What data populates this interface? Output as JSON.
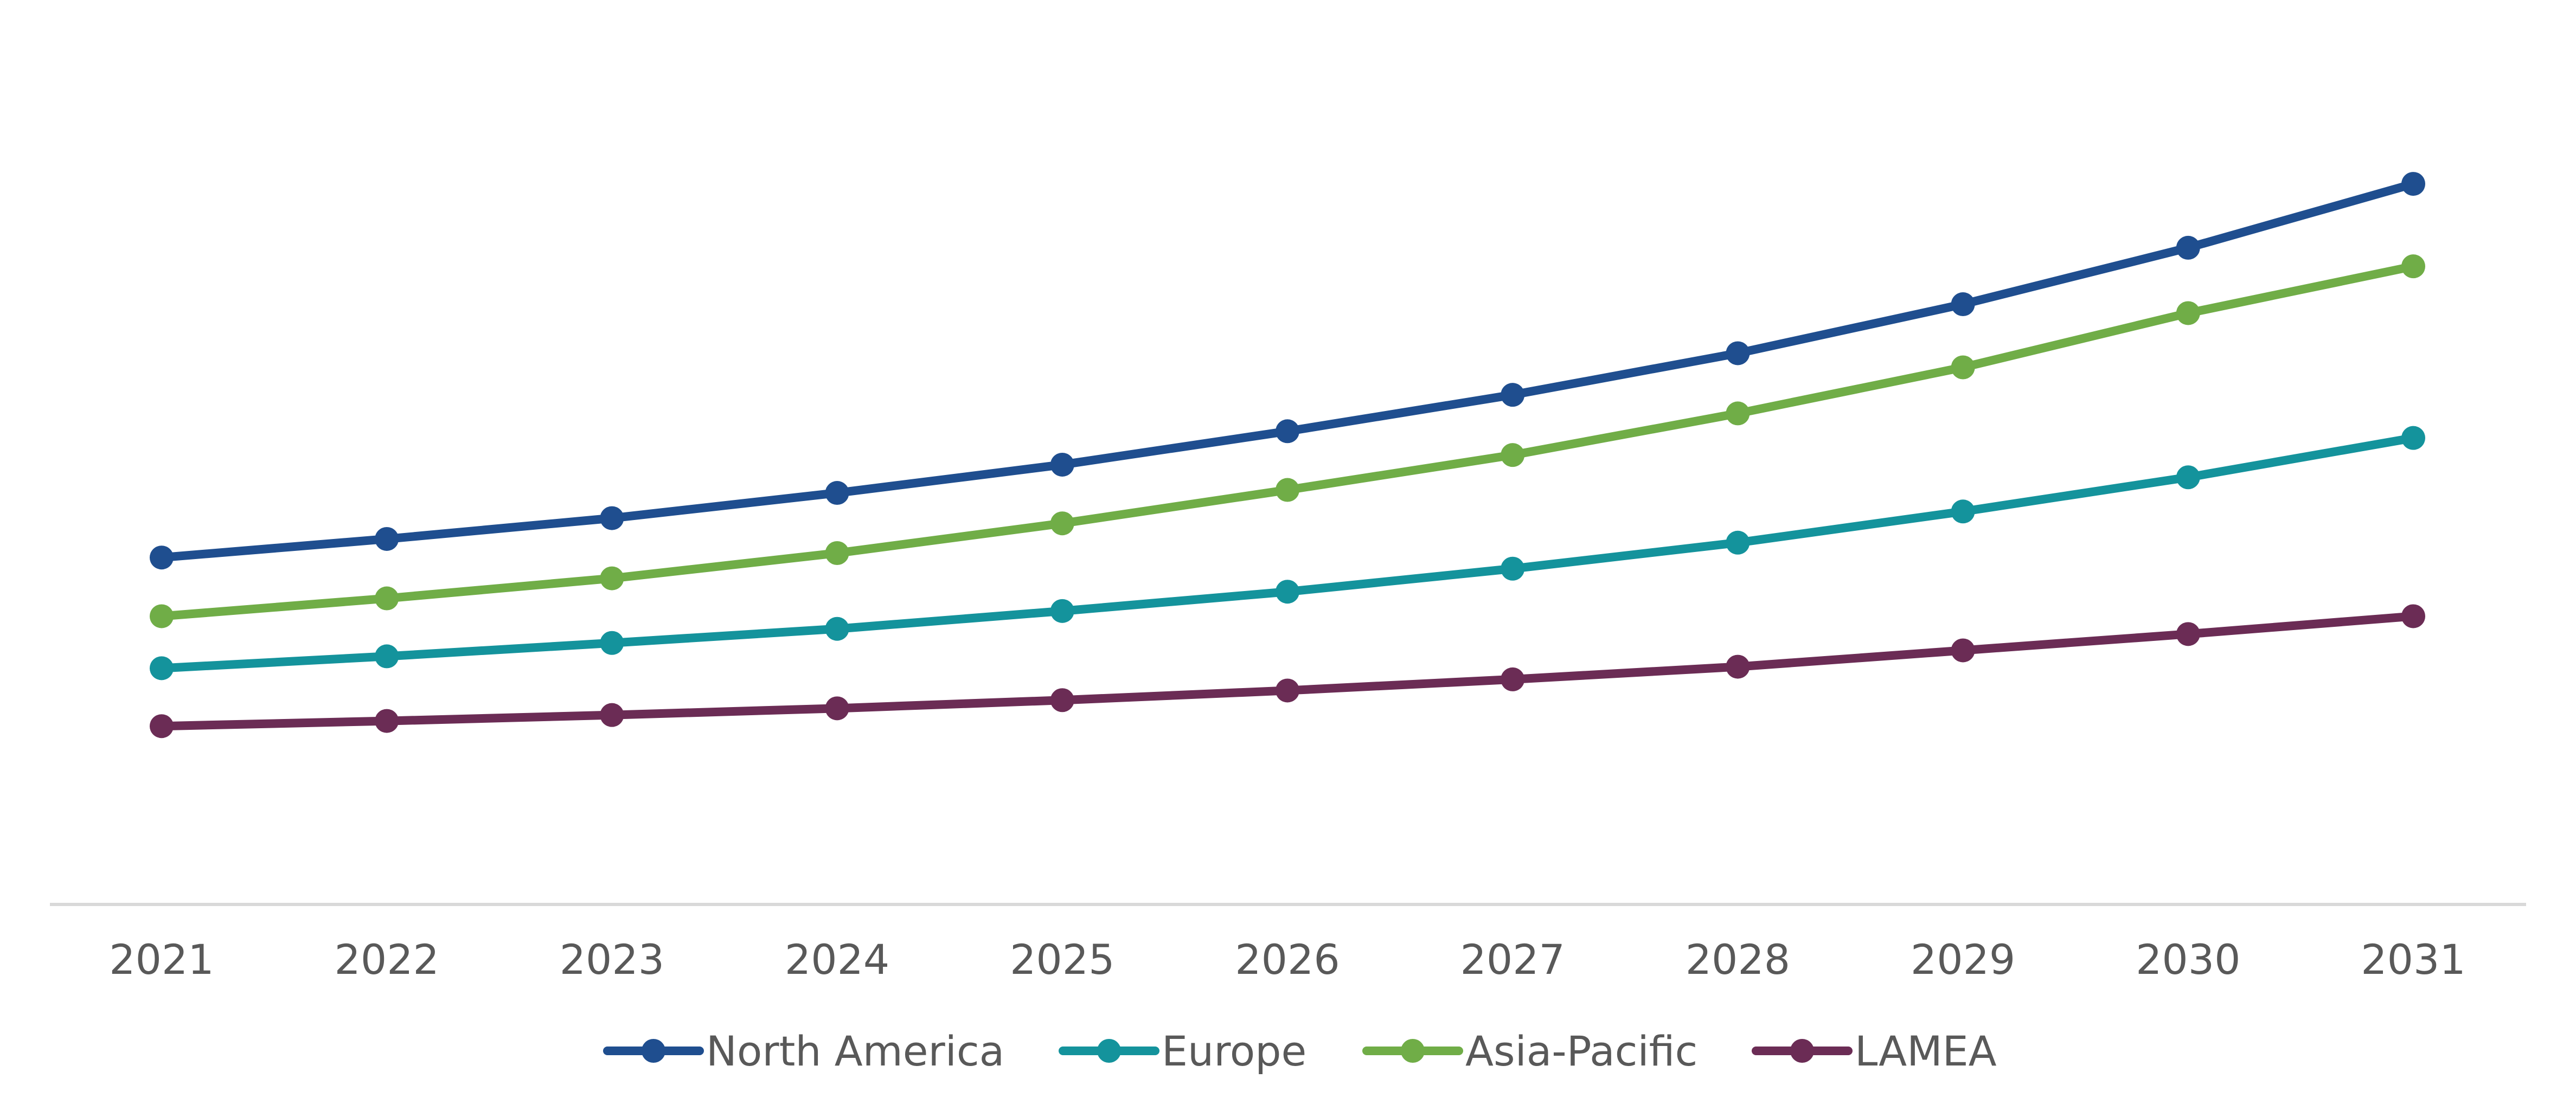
{
  "chart_data": {
    "type": "line",
    "title": "",
    "xlabel": "",
    "ylabel": "",
    "categories": [
      "2021",
      "2022",
      "2023",
      "2024",
      "2025",
      "2026",
      "2027",
      "2028",
      "2029",
      "2030",
      "2031"
    ],
    "ylim": [
      0,
      100
    ],
    "grid": false,
    "legend_position": "bottom-center",
    "series": [
      {
        "name": "North America",
        "color": "#1F4E8F",
        "values": [
          46.7,
          49.2,
          52.0,
          55.4,
          59.2,
          63.7,
          68.6,
          74.2,
          80.8,
          88.4,
          97.0
        ]
      },
      {
        "name": "Europe",
        "color": "#14939C",
        "values": [
          31.8,
          33.4,
          35.2,
          37.1,
          39.5,
          42.1,
          45.2,
          48.7,
          52.9,
          57.5,
          62.8
        ]
      },
      {
        "name": "Asia-Pacific",
        "color": "#70AD47",
        "values": [
          38.8,
          41.2,
          43.9,
          47.3,
          51.3,
          55.8,
          60.5,
          66.1,
          72.3,
          79.6,
          85.9
        ]
      },
      {
        "name": "LAMEA",
        "color": "#6B2C55",
        "values": [
          24.0,
          24.7,
          25.5,
          26.4,
          27.5,
          28.8,
          30.3,
          32.0,
          34.2,
          36.4,
          38.8
        ]
      }
    ]
  }
}
